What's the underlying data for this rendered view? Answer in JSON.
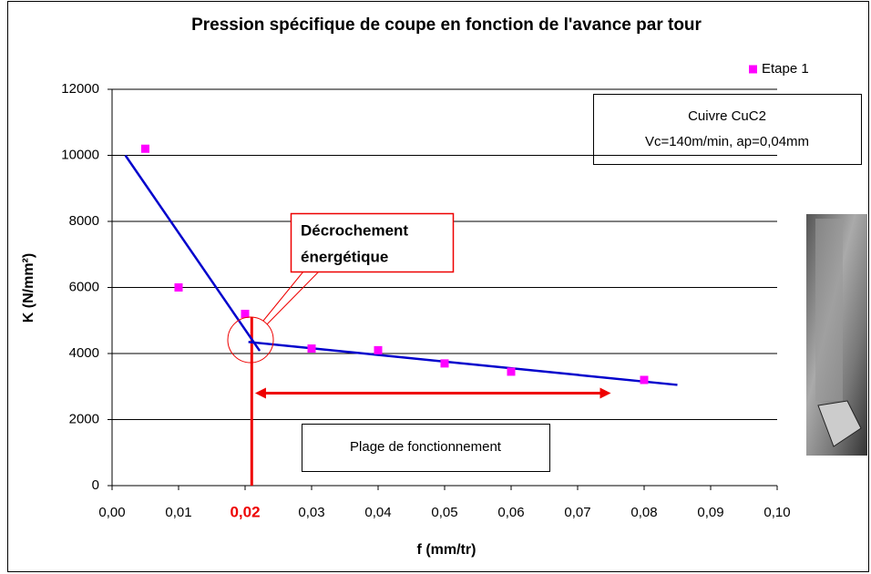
{
  "chart_data": {
    "type": "scatter",
    "title": "Pression spécifique de coupe en fonction de l'avance par tour",
    "x_label": "f (mm/tr)",
    "y_label": "K (N/mm²)",
    "xlim": [
      0,
      0.1
    ],
    "ylim": [
      0,
      12000
    ],
    "xticks": [
      {
        "value": 0,
        "label": "0,00"
      },
      {
        "value": 0.01,
        "label": "0,01"
      },
      {
        "value": 0.02,
        "label": "0,02",
        "color": "#ee0000",
        "bold": true
      },
      {
        "value": 0.03,
        "label": "0,03"
      },
      {
        "value": 0.04,
        "label": "0,04"
      },
      {
        "value": 0.05,
        "label": "0,05"
      },
      {
        "value": 0.06,
        "label": "0,06"
      },
      {
        "value": 0.07,
        "label": "0,07"
      },
      {
        "value": 0.08,
        "label": "0,08"
      },
      {
        "value": 0.09,
        "label": "0,09"
      },
      {
        "value": 0.1,
        "label": "0,10"
      }
    ],
    "yticks": [
      0,
      2000,
      4000,
      6000,
      8000,
      10000,
      12000
    ],
    "grid": true,
    "legend": "top-right",
    "series": [
      {
        "name": "Etape 1",
        "color": "#ff00ff",
        "x": [
          0.005,
          0.01,
          0.02,
          0.03,
          0.04,
          0.05,
          0.06,
          0.08
        ],
        "values": [
          10200,
          6000,
          5200,
          4150,
          4100,
          3700,
          3450,
          3200
        ]
      }
    ],
    "trendlines": [
      {
        "color": "#0000cc",
        "x": [
          0.002,
          0.0222
        ],
        "values": [
          10000,
          4080
        ]
      },
      {
        "color": "#0000cc",
        "x": [
          0.0205,
          0.085
        ],
        "values": [
          4350,
          3050
        ]
      }
    ],
    "marker_line": {
      "x": 0.021,
      "values": [
        0,
        5100
      ],
      "color": "#ee0000"
    },
    "range_arrow": {
      "x": [
        0.0215,
        0.075
      ],
      "value": 2800,
      "color": "#ee0000"
    },
    "callout": {
      "lines": [
        "Décrochement",
        "énergétique"
      ],
      "color": "#ee0000"
    },
    "info_box": {
      "lines": [
        "Cuivre CuC2",
        "Vc=140m/min, ap=0,04mm"
      ]
    },
    "range_label": "Plage de fonctionnement"
  }
}
